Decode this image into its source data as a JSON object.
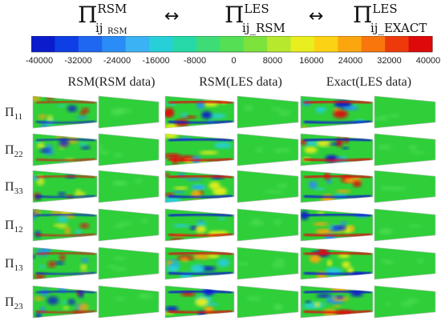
{
  "header": {
    "term1": {
      "symbol": "Π",
      "sup": "RSM",
      "sub": "ij",
      "subsub": "RSM"
    },
    "arrow1": "↔",
    "term2": {
      "symbol": "Π",
      "sup": "LES",
      "sub": "ij_RSM"
    },
    "arrow2": "↔",
    "term3": {
      "symbol": "Π",
      "sup": "LES",
      "sub": "ij_EXACT"
    }
  },
  "colorbar": {
    "ticks": [
      "-40000",
      "-32000",
      "-24000",
      "-16000",
      "-8000",
      "0",
      "8000",
      "16000",
      "24000",
      "32000",
      "40000"
    ],
    "colors": [
      "#0a1ccc",
      "#0d3ee6",
      "#1f66f0",
      "#2a8cf6",
      "#3bb2f4",
      "#27cfd9",
      "#26d9a9",
      "#3ddc76",
      "#53e055",
      "#7de23c",
      "#b7e82d",
      "#e9ee1e",
      "#fcd214",
      "#fca60f",
      "#f8760c",
      "#ee3a0a",
      "#dc0a0a"
    ]
  },
  "columns": [
    "RSM(RSM data)",
    "RSM(LES data)",
    "Exact(LES data)"
  ],
  "rows": [
    {
      "base": "Π",
      "sub": "11"
    },
    {
      "base": "Π",
      "sub": "22"
    },
    {
      "base": "Π",
      "sub": "33"
    },
    {
      "base": "Π",
      "sub": "12"
    },
    {
      "base": "Π",
      "sub": "13"
    },
    {
      "base": "Π",
      "sub": "23"
    }
  ],
  "colors": {
    "field_green": "#2fcf3a"
  }
}
